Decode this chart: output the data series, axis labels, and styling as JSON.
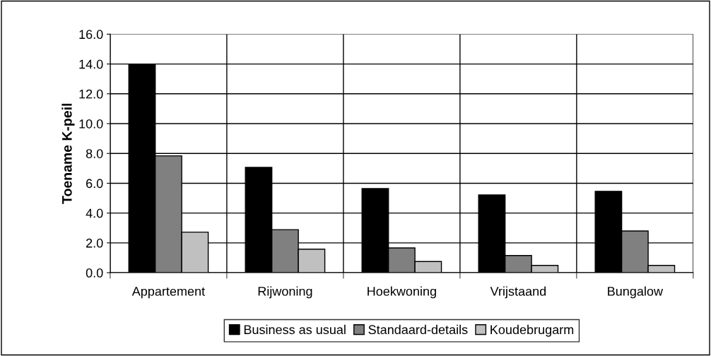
{
  "chart_data": {
    "type": "bar",
    "ylabel": "Toename K-peil",
    "categories": [
      "Appartement",
      "Rijwoning",
      "Hoekwoning",
      "Vrijstaand",
      "Bungalow"
    ],
    "series": [
      {
        "name": "Business as usual",
        "color": "#000000",
        "values": [
          14.0,
          7.06,
          5.64,
          5.22,
          5.46
        ]
      },
      {
        "name": "Standaard-details",
        "color": "#808080",
        "values": [
          7.84,
          2.89,
          1.66,
          1.15,
          2.8
        ]
      },
      {
        "name": "Koudebrugarm",
        "color": "#c0c0c0",
        "values": [
          2.72,
          1.58,
          0.75,
          0.49,
          0.49
        ]
      }
    ],
    "ylim": [
      0,
      16
    ],
    "yticks": [
      {
        "value": 0,
        "label": "0.0"
      },
      {
        "value": 2,
        "label": "2.0"
      },
      {
        "value": 4,
        "label": "4.0"
      },
      {
        "value": 6,
        "label": "6.0"
      },
      {
        "value": 8,
        "label": "8.0"
      },
      {
        "value": 10,
        "label": "10.0"
      },
      {
        "value": 12,
        "label": "12.0"
      },
      {
        "value": 14,
        "label": "14.0"
      },
      {
        "value": 16,
        "label": "16.0"
      }
    ],
    "grid": true,
    "legend": "bottom"
  }
}
